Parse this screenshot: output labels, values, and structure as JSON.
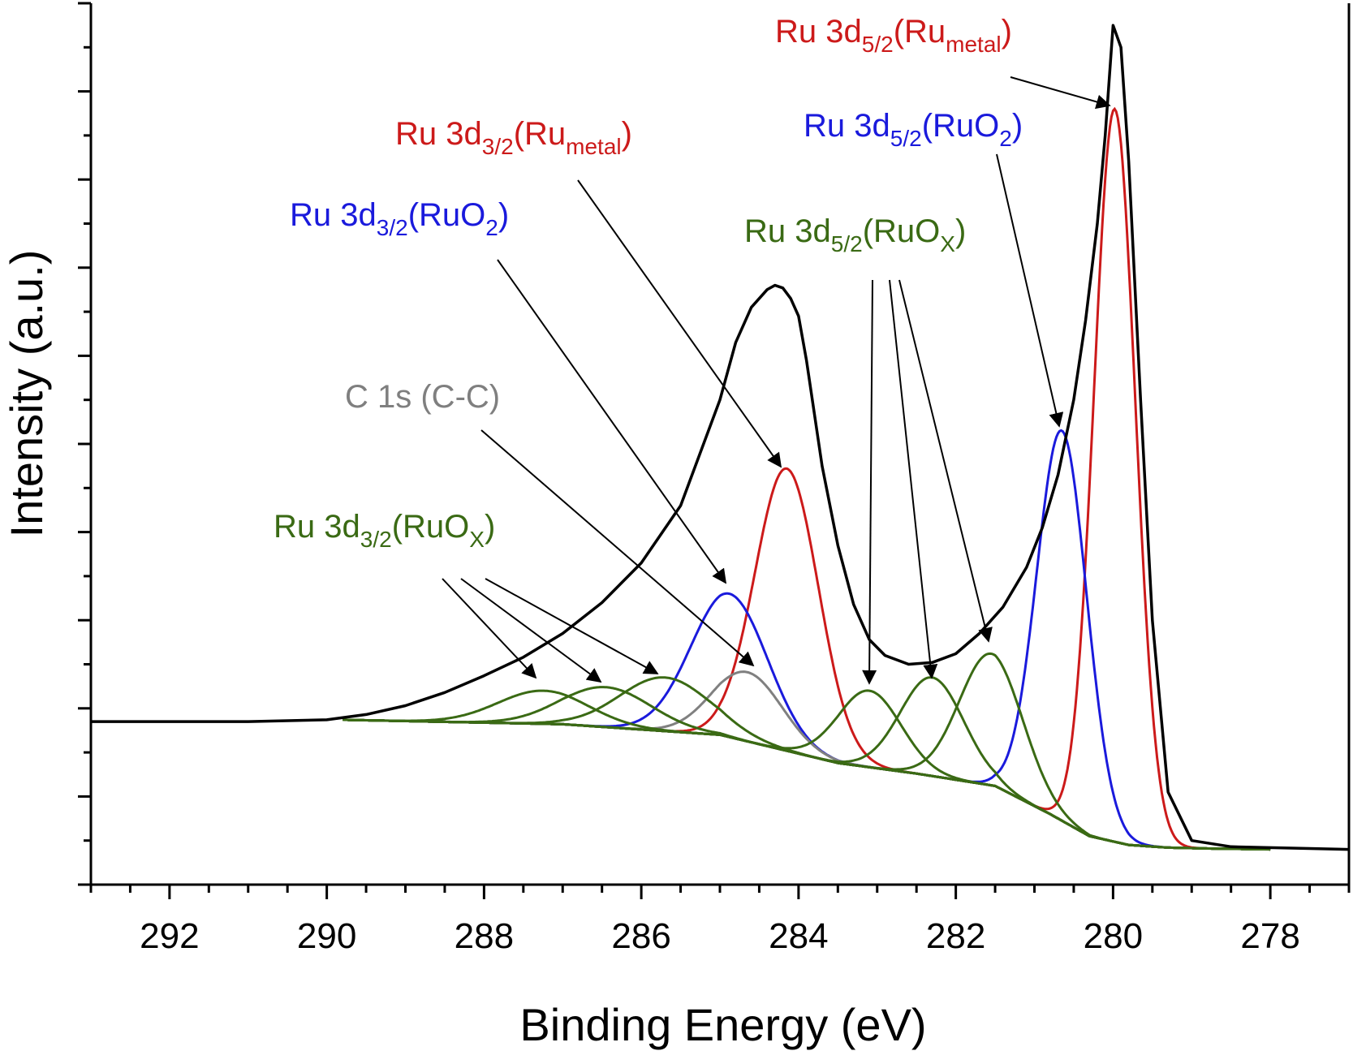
{
  "chart_data": {
    "type": "line",
    "title": "",
    "xlabel": "Binding Energy (eV)",
    "ylabel": "Intensity (a.u.)",
    "xlim": [
      293,
      277
    ],
    "ylim": [
      0,
      100
    ],
    "x_reversed": true,
    "x_ticks": [
      "292",
      "290",
      "288",
      "286",
      "284",
      "282",
      "280",
      "278"
    ],
    "y_tick_labels": "none",
    "grid": false,
    "legend": "none",
    "colors": {
      "envelope": "#000000",
      "ru_metal": "#cc1a1a",
      "ruo2": "#1a1adc",
      "ruox": "#3a6a14",
      "c1s": "#808080",
      "arrow": "#000000"
    },
    "series": [
      {
        "role": "envelope",
        "color": "#000000",
        "x": [
          293,
          291,
          290,
          289.5,
          289,
          288.5,
          288,
          287.5,
          287,
          286.5,
          286,
          285.5,
          285,
          284.8,
          284.6,
          284.4,
          284.3,
          284.2,
          284.1,
          284,
          283.9,
          283.7,
          283.5,
          283.3,
          283.1,
          282.9,
          282.6,
          282.3,
          282,
          281.7,
          281.4,
          281.1,
          280.9,
          280.7,
          280.5,
          280.35,
          280.2,
          280.1,
          280.0,
          279.9,
          279.8,
          279.65,
          279.5,
          279.3,
          279.0,
          278.5,
          277.5,
          277
        ],
        "y": [
          18.5,
          18.5,
          18.7,
          19.3,
          20.3,
          21.8,
          23.7,
          25.8,
          28.5,
          32.0,
          36.5,
          43.0,
          55.0,
          61.5,
          65.5,
          67.5,
          68.0,
          67.7,
          66.5,
          64.5,
          59.5,
          47.5,
          38.5,
          31.8,
          27.8,
          26.0,
          25.0,
          25.2,
          26.2,
          28.5,
          31.5,
          36.0,
          40.5,
          46.5,
          55.0,
          64.0,
          75.0,
          85.0,
          97.5,
          95.0,
          82.0,
          55.0,
          30.0,
          10.5,
          5.0,
          4.3,
          4.1,
          4.0
        ]
      },
      {
        "role": "component",
        "name": "Ru 3d5/2(Ru metal)",
        "color": "#cc1a1a",
        "center": 279.98,
        "peak": 88,
        "fwhm": 0.62
      },
      {
        "role": "component",
        "name": "Ru 3d3/2(Ru metal)",
        "color": "#cc1a1a",
        "center": 284.15,
        "peak": 47.2,
        "fwhm": 0.95
      },
      {
        "role": "component",
        "name": "Ru 3d5/2(RuO2)",
        "color": "#1a1adc",
        "center": 280.65,
        "peak": 51.5,
        "fwhm": 0.75
      },
      {
        "role": "component",
        "name": "Ru 3d3/2(RuO2)",
        "color": "#1a1adc",
        "center": 284.88,
        "peak": 33.0,
        "fwhm": 1.15
      },
      {
        "role": "component",
        "name": "C 1s (C-C)",
        "color": "#808080",
        "center": 284.65,
        "peak": 24.1,
        "fwhm": 1.05
      },
      {
        "role": "component",
        "name": "Ru 3d5/2(RuOX) 1",
        "color": "#3a6a14",
        "center": 281.55,
        "peak": 26.2,
        "fwhm": 0.95
      },
      {
        "role": "component",
        "name": "Ru 3d5/2(RuOX) 2",
        "color": "#3a6a14",
        "center": 282.3,
        "peak": 23.5,
        "fwhm": 0.95
      },
      {
        "role": "component",
        "name": "Ru 3d5/2(RuOX) 3",
        "color": "#3a6a14",
        "center": 283.1,
        "peak": 22.0,
        "fwhm": 0.95
      },
      {
        "role": "component",
        "name": "Ru 3d3/2(RuOX) 1",
        "color": "#3a6a14",
        "center": 285.7,
        "peak": 23.5,
        "fwhm": 1.35
      },
      {
        "role": "component",
        "name": "Ru 3d3/2(RuOX) 2",
        "color": "#3a6a14",
        "center": 286.45,
        "peak": 22.4,
        "fwhm": 1.35
      },
      {
        "role": "component",
        "name": "Ru 3d3/2(RuOX) 3",
        "color": "#3a6a14",
        "center": 287.25,
        "peak": 22.0,
        "fwhm": 1.35
      }
    ],
    "background": {
      "x": [
        289.8,
        287,
        285,
        283.5,
        282.5,
        281.5,
        280.8,
        280.3,
        279.8,
        279.3,
        278.8,
        278.0
      ],
      "y": [
        18.7,
        18.2,
        17.0,
        13.8,
        12.6,
        11.2,
        8.0,
        5.5,
        4.5,
        4.2,
        4.1,
        4.0
      ]
    },
    "annotations": [
      {
        "label": "Ru 3d5/2(Rumetal)",
        "main": "Ru 3d",
        "sub": "5/2",
        "paren": "(Ru",
        "sub2": "metal",
        "close": ")",
        "color": "#cc1a1a"
      },
      {
        "label": "Ru 3d3/2(Rumetal)",
        "main": "Ru 3d",
        "sub": "3/2",
        "paren": "(Ru",
        "sub2": "metal",
        "close": ")",
        "color": "#cc1a1a"
      },
      {
        "label": "Ru 3d5/2(RuO2)",
        "main": "Ru 3d",
        "sub": "5/2",
        "paren": "(RuO",
        "sub2": "2",
        "close": ")",
        "color": "#1a1adc"
      },
      {
        "label": "Ru 3d3/2(RuO2)",
        "main": "Ru 3d",
        "sub": "3/2",
        "paren": "(RuO",
        "sub2": "2",
        "close": ")",
        "color": "#1a1adc"
      },
      {
        "label": "Ru 3d5/2(RuOX)",
        "main": "Ru 3d",
        "sub": "5/2",
        "paren": "(RuO",
        "sub2": "X",
        "close": ")",
        "color": "#3a6a14"
      },
      {
        "label": "C 1s (C-C)",
        "main": "C 1s (C-C)",
        "sub": "",
        "paren": "",
        "sub2": "",
        "close": "",
        "color": "#7f7f7f"
      },
      {
        "label": "Ru 3d3/2(RuOX)",
        "main": "Ru 3d",
        "sub": "3/2",
        "paren": "(RuO",
        "sub2": "X",
        "close": ")",
        "color": "#3a6a14"
      }
    ]
  }
}
